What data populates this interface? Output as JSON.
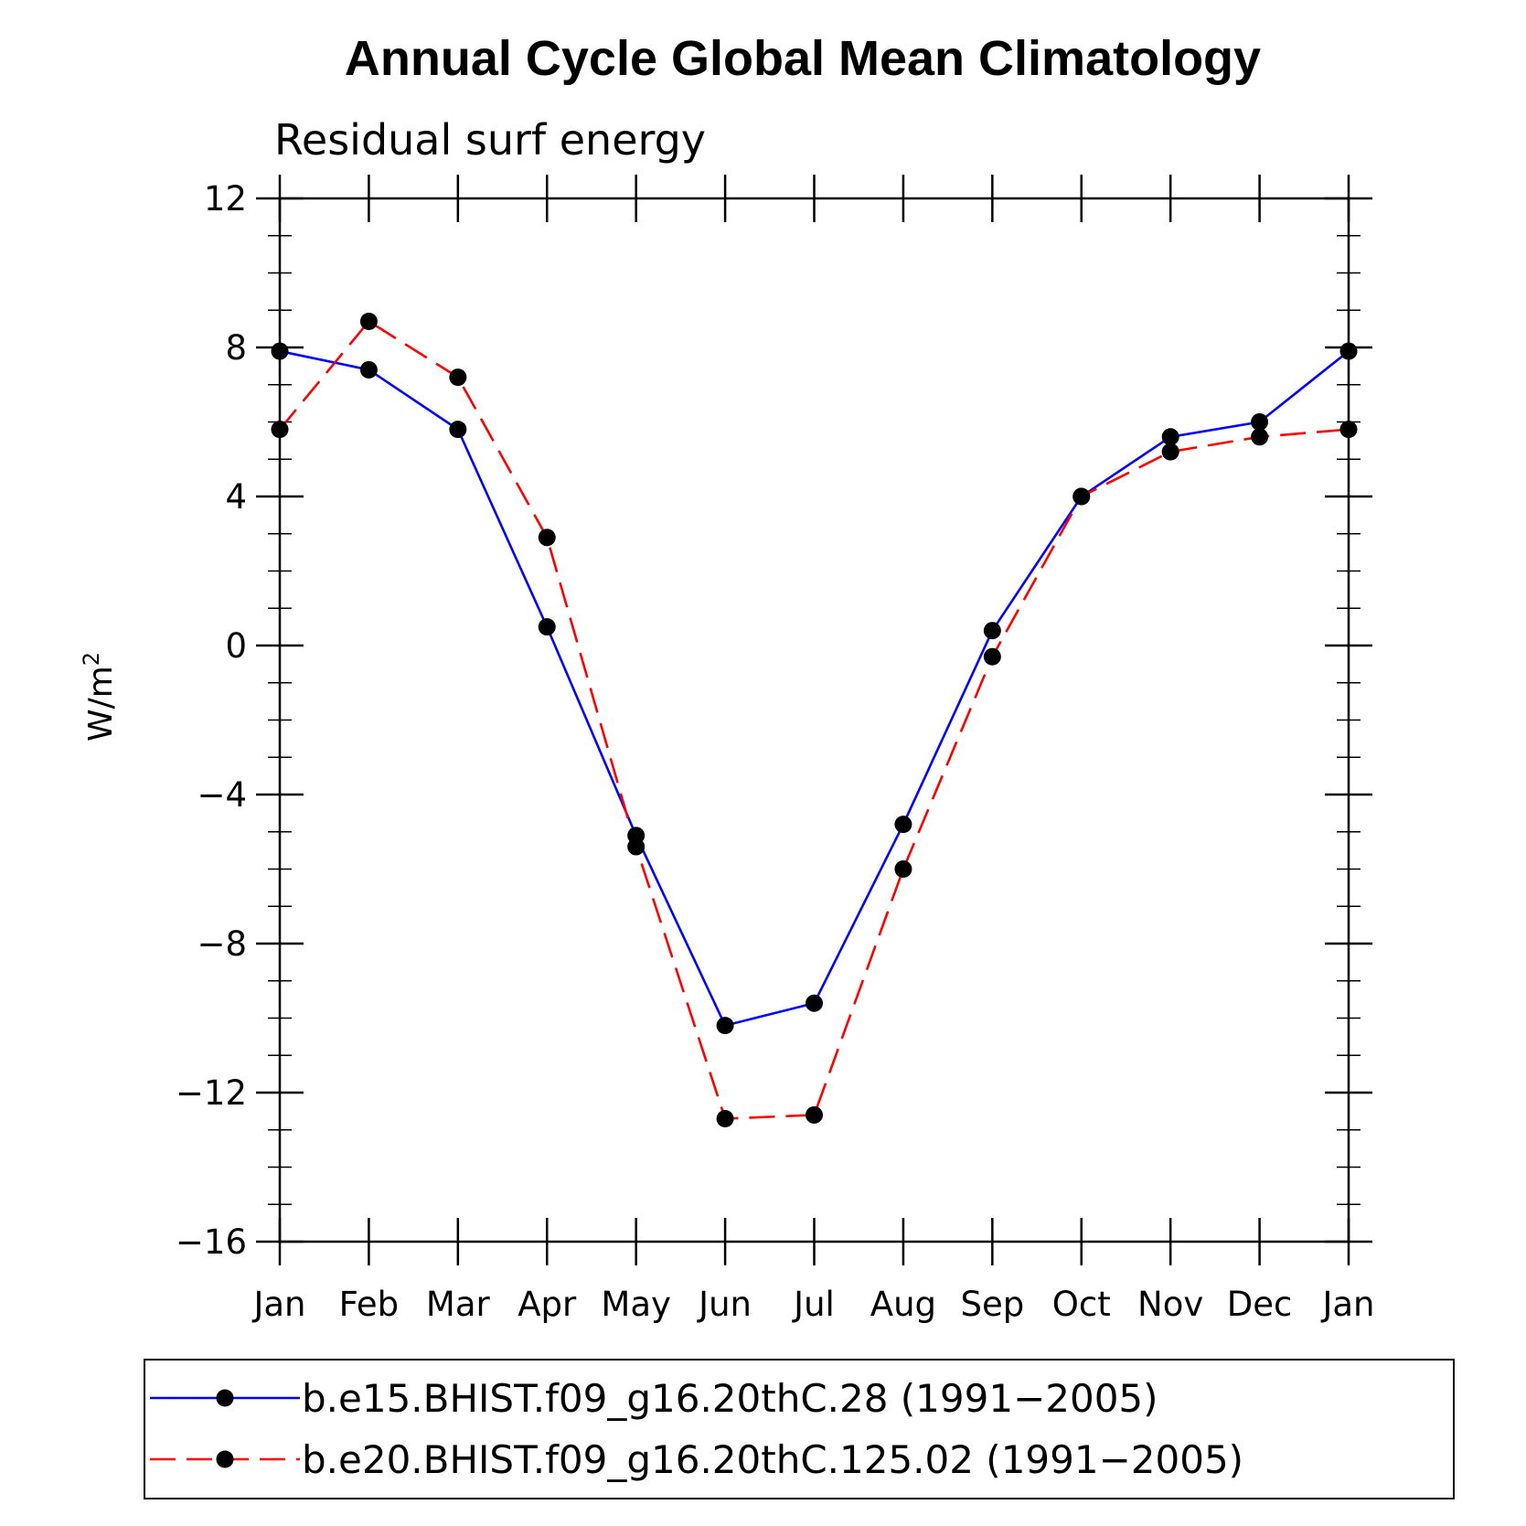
{
  "chart_data": {
    "type": "line",
    "title": "Annual Cycle Global Mean Climatology",
    "subtitle": "Residual surf energy",
    "xlabel": "",
    "ylabel": "W/m",
    "ylabel_superscript": "2",
    "categories": [
      "Jan",
      "Feb",
      "Mar",
      "Apr",
      "May",
      "Jun",
      "Jul",
      "Aug",
      "Sep",
      "Oct",
      "Nov",
      "Dec",
      "Jan"
    ],
    "ylim": [
      -16,
      12
    ],
    "yticks": [
      12,
      8,
      4,
      0,
      -4,
      -8,
      -12,
      -16
    ],
    "ytick_labels": [
      "12",
      "8",
      "4",
      "0",
      "−4",
      "−8",
      "−12",
      "−16"
    ],
    "grid": false,
    "legend_position": "bottom",
    "series": [
      {
        "name": "b.e15.BHIST.f09_g16.20thC.28 (1991−2005)",
        "color": "#0000ff",
        "dash": "solid",
        "values": [
          7.9,
          7.4,
          5.8,
          0.5,
          -5.1,
          -10.2,
          -9.6,
          -4.8,
          0.4,
          4.0,
          5.6,
          6.0,
          7.9
        ]
      },
      {
        "name": "b.e20.BHIST.f09_g16.20thC.125.02 (1991−2005)",
        "color": "#ff0000",
        "dash": "dashed",
        "values": [
          5.8,
          8.7,
          7.2,
          2.9,
          -5.4,
          -12.7,
          -12.6,
          -6.0,
          -0.3,
          4.0,
          5.2,
          5.6,
          5.8
        ]
      }
    ]
  }
}
